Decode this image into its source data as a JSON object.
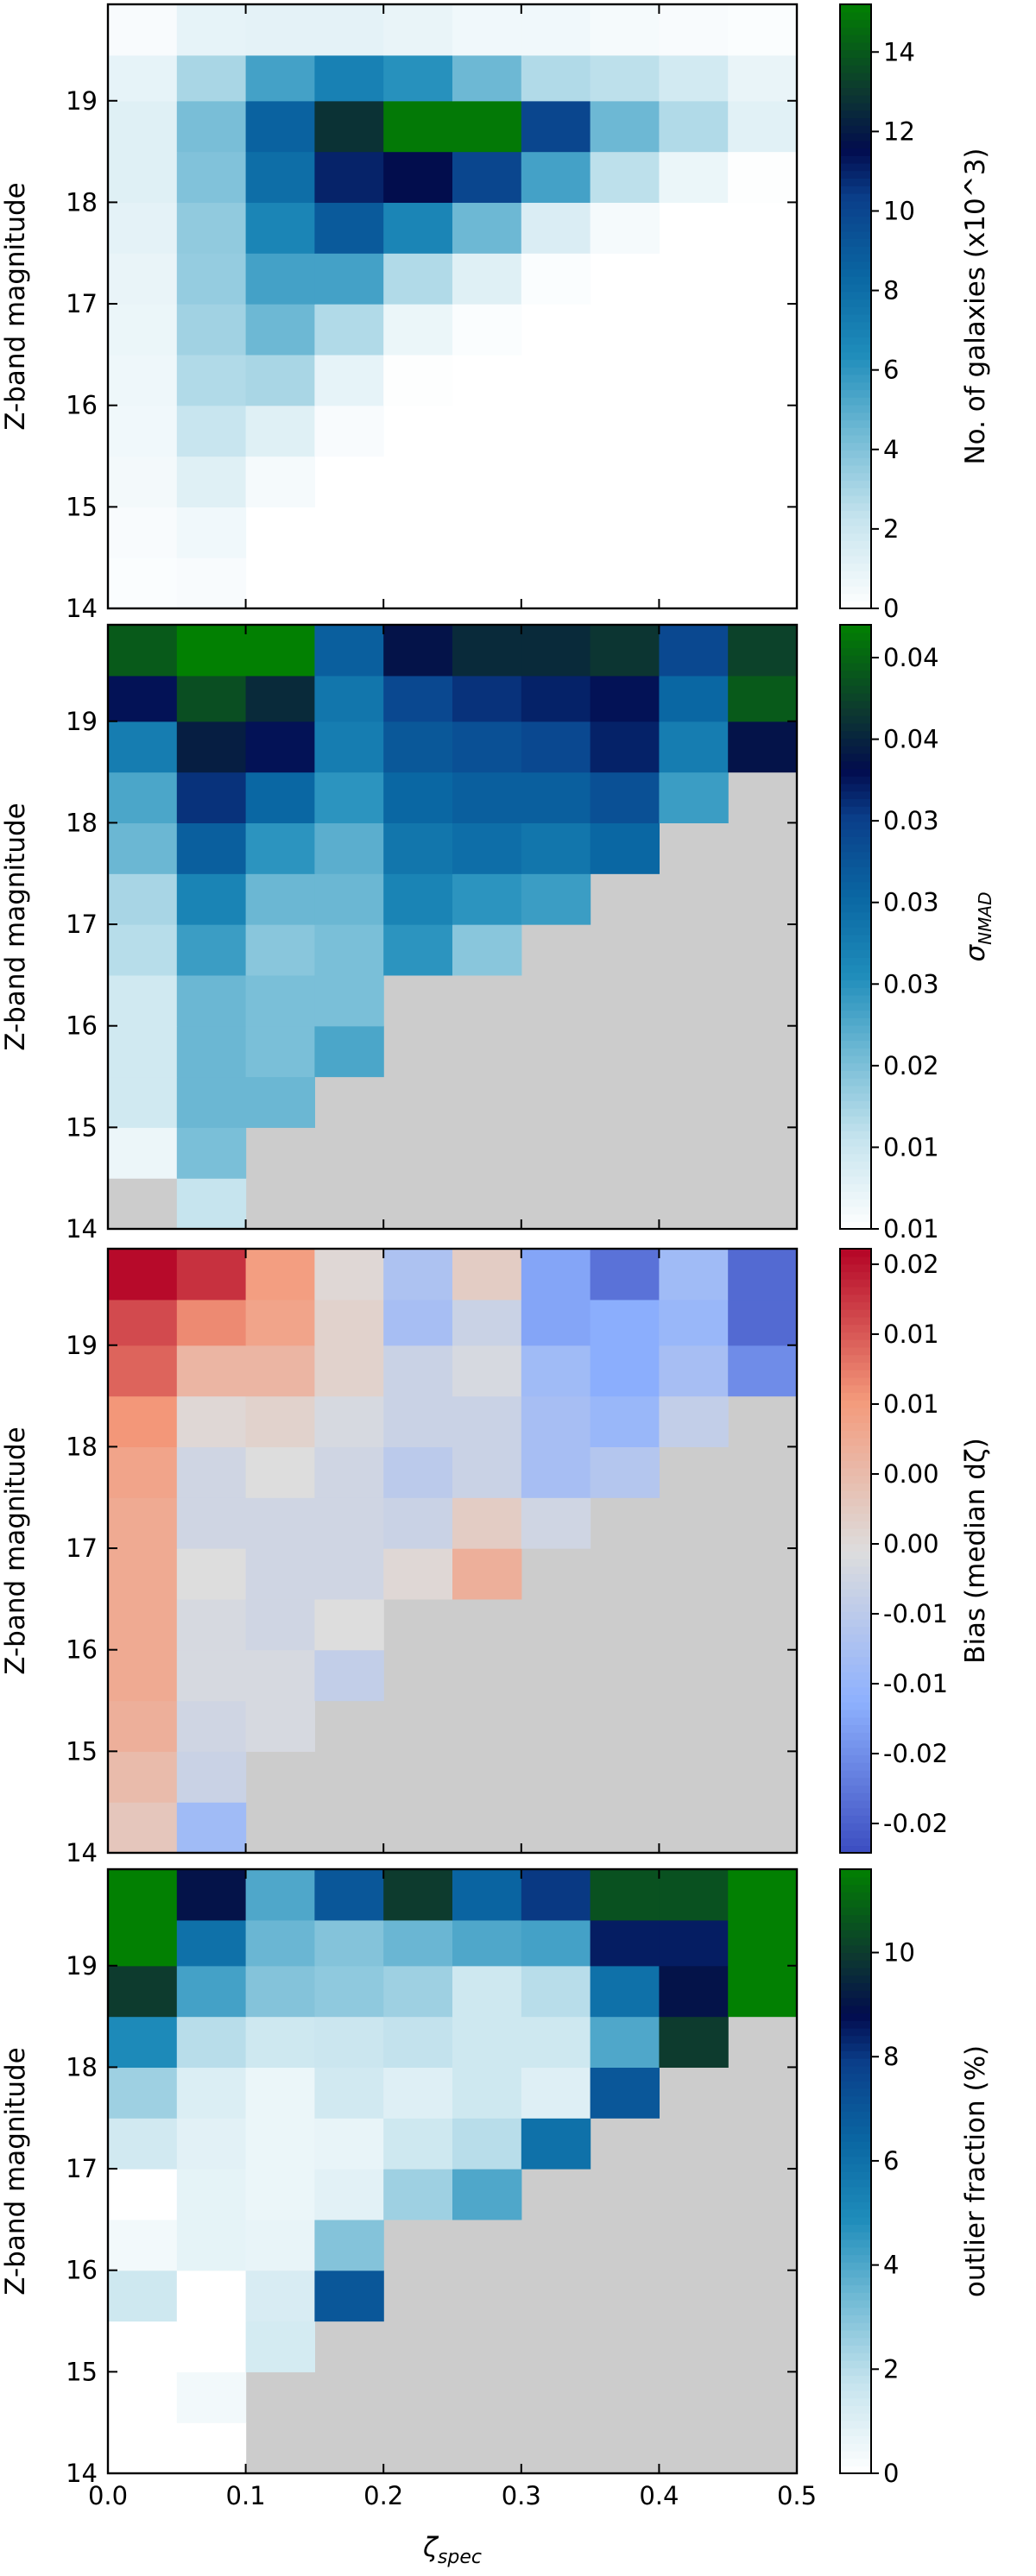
{
  "chart_data": [
    {
      "type": "heatmap",
      "panel": "galaxy-counts",
      "ylabel": "Z-band magnitude",
      "yticks": [
        "14",
        "15",
        "16",
        "17",
        "18",
        "19"
      ],
      "xticks": [],
      "xlabel": "",
      "xlim": [
        0.0,
        0.5
      ],
      "ylim": [
        14.0,
        19.95
      ],
      "x_bin_edges": [
        0.0,
        0.05,
        0.1,
        0.15,
        0.2,
        0.25,
        0.3,
        0.35,
        0.4,
        0.45,
        0.5
      ],
      "y_bin_edges": [
        14.0,
        14.5,
        15.0,
        15.5,
        16.0,
        16.5,
        17.0,
        17.5,
        18.0,
        18.5,
        19.0,
        19.45,
        19.95
      ],
      "values_bottom_to_top": [
        [
          0.2,
          0.3,
          null,
          null,
          null,
          null,
          null,
          null,
          null,
          null
        ],
        [
          0.3,
          0.6,
          null,
          null,
          null,
          null,
          null,
          null,
          null,
          null
        ],
        [
          0.5,
          1.3,
          0.4,
          null,
          null,
          null,
          null,
          null,
          null,
          null
        ],
        [
          0.6,
          2.2,
          1.3,
          0.3,
          null,
          null,
          null,
          null,
          null,
          null
        ],
        [
          0.7,
          2.8,
          3.0,
          1.0,
          0.1,
          null,
          null,
          null,
          null,
          null
        ],
        [
          0.8,
          3.2,
          4.5,
          2.8,
          0.8,
          0.2,
          null,
          null,
          null,
          null
        ],
        [
          0.9,
          3.5,
          5.5,
          5.5,
          2.8,
          1.3,
          0.2,
          null,
          null,
          null
        ],
        [
          1.1,
          3.6,
          6.8,
          9.0,
          6.8,
          4.5,
          1.5,
          0.4,
          null,
          null
        ],
        [
          1.3,
          4.0,
          8.0,
          11.0,
          11.6,
          10.0,
          5.5,
          2.5,
          0.8,
          0.1
        ],
        [
          1.3,
          4.2,
          8.6,
          12.8,
          15.0,
          15.0,
          10.0,
          4.5,
          2.8,
          1.2
        ],
        [
          1.0,
          3.0,
          5.5,
          7.0,
          6.2,
          4.5,
          2.8,
          2.5,
          1.8,
          0.9
        ],
        [
          0.3,
          1.0,
          1.1,
          1.1,
          0.9,
          0.6,
          0.6,
          0.4,
          0.3,
          0.2
        ]
      ],
      "colorbar": {
        "label": "No. of galaxies (x10^3)",
        "ticks": [
          "0",
          "2",
          "4",
          "6",
          "8",
          "10",
          "12",
          "14"
        ],
        "range": [
          0,
          15.2
        ]
      },
      "colormap": "white-teal-blue-navy-green",
      "missing_color": "#ffffff"
    },
    {
      "type": "heatmap",
      "panel": "sigma-nmad",
      "ylabel": "Z-band magnitude",
      "yticks": [
        "14",
        "15",
        "16",
        "17",
        "18",
        "19"
      ],
      "xticks": [],
      "xlabel": "",
      "xlim": [
        0.0,
        0.5
      ],
      "ylim": [
        14.0,
        19.95
      ],
      "x_bin_edges": [
        0.0,
        0.05,
        0.1,
        0.15,
        0.2,
        0.25,
        0.3,
        0.35,
        0.4,
        0.45,
        0.5
      ],
      "y_bin_edges": [
        14.0,
        14.5,
        15.0,
        15.5,
        16.0,
        16.5,
        17.0,
        17.5,
        18.0,
        18.5,
        19.0,
        19.45,
        19.95
      ],
      "values_bottom_to_top": [
        [
          null,
          0.012,
          null,
          null,
          null,
          null,
          null,
          null,
          null,
          null
        ],
        [
          0.008,
          0.017,
          null,
          null,
          null,
          null,
          null,
          null,
          null,
          null
        ],
        [
          0.011,
          0.018,
          0.018,
          null,
          null,
          null,
          null,
          null,
          null,
          null
        ],
        [
          0.011,
          0.018,
          0.017,
          0.02,
          null,
          null,
          null,
          null,
          null,
          null
        ],
        [
          0.011,
          0.018,
          0.017,
          0.017,
          null,
          null,
          null,
          null,
          null,
          null
        ],
        [
          0.013,
          0.021,
          0.016,
          0.017,
          0.022,
          0.016,
          null,
          null,
          null,
          null
        ],
        [
          0.014,
          0.024,
          0.018,
          0.018,
          0.024,
          0.022,
          0.021,
          null,
          null,
          null
        ],
        [
          0.018,
          0.029,
          0.022,
          0.019,
          0.026,
          0.027,
          0.026,
          0.028,
          null,
          null
        ],
        [
          0.02,
          0.034,
          0.028,
          0.022,
          0.028,
          0.029,
          0.029,
          0.031,
          0.021,
          null
        ],
        [
          0.025,
          0.038,
          0.036,
          0.025,
          0.03,
          0.031,
          0.032,
          0.035,
          0.025,
          0.037
        ],
        [
          0.036,
          0.042,
          0.039,
          0.026,
          0.032,
          0.034,
          0.035,
          0.036,
          0.028,
          0.043
        ],
        [
          0.043,
          0.046,
          0.046,
          0.029,
          0.037,
          0.039,
          0.039,
          0.04,
          0.032,
          0.041
        ]
      ],
      "colorbar": {
        "label": "σNMAD",
        "label_main": "σ",
        "label_sub": "NMAD",
        "ticks": [
          "0.01",
          "0.01",
          "0.02",
          "0.03",
          "0.03",
          "0.03",
          "0.04",
          "0.04"
        ],
        "range": [
          0.006,
          0.046
        ]
      },
      "colormap": "white-teal-blue-navy-green",
      "missing_color": "#cccccc"
    },
    {
      "type": "heatmap",
      "panel": "bias",
      "ylabel": "Z-band magnitude",
      "yticks": [
        "14",
        "15",
        "16",
        "17",
        "18",
        "19"
      ],
      "xticks": [],
      "xlabel": "",
      "xlim": [
        0.0,
        0.5
      ],
      "ylim": [
        14.0,
        19.95
      ],
      "x_bin_edges": [
        0.0,
        0.05,
        0.1,
        0.15,
        0.2,
        0.25,
        0.3,
        0.35,
        0.4,
        0.45,
        0.5
      ],
      "y_bin_edges": [
        14.0,
        14.5,
        15.0,
        15.5,
        16.0,
        16.5,
        17.0,
        17.5,
        18.0,
        18.5,
        19.0,
        19.45,
        19.95
      ],
      "values_bottom_to_top": [
        [
          0.004,
          -0.009,
          null,
          null,
          null,
          null,
          null,
          null,
          null,
          null
        ],
        [
          0.006,
          -0.003,
          null,
          null,
          null,
          null,
          null,
          null,
          null,
          null
        ],
        [
          0.008,
          -0.002,
          -0.001,
          null,
          null,
          null,
          null,
          null,
          null,
          null
        ],
        [
          0.009,
          -0.001,
          -0.001,
          -0.004,
          null,
          null,
          null,
          null,
          null,
          null
        ],
        [
          0.009,
          -0.001,
          -0.002,
          0.0,
          null,
          null,
          null,
          null,
          null,
          null
        ],
        [
          0.009,
          0.0,
          -0.002,
          -0.002,
          0.001,
          0.008,
          null,
          null,
          null,
          null
        ],
        [
          0.009,
          -0.002,
          -0.002,
          -0.002,
          -0.003,
          0.003,
          -0.002,
          null,
          null,
          null
        ],
        [
          0.01,
          -0.002,
          0.0,
          -0.002,
          -0.005,
          -0.003,
          -0.008,
          -0.006,
          null,
          null
        ],
        [
          0.012,
          0.001,
          0.002,
          -0.001,
          -0.003,
          -0.003,
          -0.008,
          -0.01,
          -0.004,
          null
        ],
        [
          0.016,
          0.007,
          0.007,
          0.002,
          -0.003,
          -0.001,
          -0.009,
          -0.012,
          -0.008,
          -0.016
        ],
        [
          0.018,
          0.013,
          0.01,
          0.002,
          -0.008,
          -0.003,
          -0.013,
          -0.012,
          -0.01,
          -0.02
        ],
        [
          0.023,
          0.02,
          0.011,
          0.001,
          -0.007,
          0.003,
          -0.013,
          -0.019,
          -0.009,
          -0.02
        ]
      ],
      "colorbar": {
        "label": "Bias (median dζ)",
        "ticks": [
          "-0.02",
          "-0.02",
          "-0.01",
          "-0.01",
          "0.00",
          "0.00",
          "0.01",
          "0.01",
          "0.02"
        ],
        "range": [
          -0.0235,
          0.0235
        ]
      },
      "colormap": "coolwarm",
      "missing_color": "#cccccc"
    },
    {
      "type": "heatmap",
      "panel": "outlier-fraction",
      "ylabel": "Z-band magnitude",
      "yticks": [
        "14",
        "15",
        "16",
        "17",
        "18",
        "19"
      ],
      "xticks": [
        "0.0",
        "0.1",
        "0.2",
        "0.3",
        "0.4",
        "0.5"
      ],
      "xlabel": "ζspec",
      "xlabel_main": "ζ",
      "xlabel_sub": "spec",
      "xlim": [
        0.0,
        0.5
      ],
      "ylim": [
        14.0,
        19.95
      ],
      "x_bin_edges": [
        0.0,
        0.05,
        0.1,
        0.15,
        0.2,
        0.25,
        0.3,
        0.35,
        0.4,
        0.45,
        0.5
      ],
      "y_bin_edges": [
        14.0,
        14.5,
        15.0,
        15.5,
        16.0,
        16.5,
        17.0,
        17.5,
        18.0,
        18.5,
        19.0,
        19.45,
        19.95
      ],
      "values_bottom_to_top": [
        [
          0.0,
          0.0,
          null,
          null,
          null,
          null,
          null,
          null,
          null,
          null
        ],
        [
          0.0,
          0.4,
          null,
          null,
          null,
          null,
          null,
          null,
          null,
          null
        ],
        [
          0.0,
          0.0,
          1.3,
          null,
          null,
          null,
          null,
          null,
          null,
          null
        ],
        [
          1.5,
          0.0,
          1.2,
          7.0,
          null,
          null,
          null,
          null,
          null,
          null
        ],
        [
          0.4,
          0.8,
          0.7,
          3.0,
          null,
          null,
          null,
          null,
          null,
          null
        ],
        [
          0.0,
          0.8,
          0.6,
          0.9,
          2.5,
          4.0,
          null,
          null,
          null,
          null
        ],
        [
          1.4,
          0.9,
          0.6,
          0.7,
          1.5,
          2.0,
          6.0,
          null,
          null,
          null
        ],
        [
          2.5,
          1.1,
          0.6,
          1.4,
          1.0,
          1.5,
          1.0,
          7.0,
          null,
          null
        ],
        [
          5.0,
          2.0,
          1.5,
          1.6,
          1.8,
          1.5,
          1.5,
          4.0,
          10.0,
          null
        ],
        [
          10.0,
          4.2,
          3.0,
          2.8,
          2.5,
          1.5,
          2.0,
          6.0,
          9.0,
          12.0
        ],
        [
          12.0,
          6.0,
          3.5,
          3.0,
          3.5,
          4.0,
          4.2,
          8.5,
          8.5,
          12.0
        ],
        [
          12.0,
          9.0,
          4.0,
          7.0,
          10.0,
          6.5,
          8.0,
          10.5,
          10.5,
          12.0
        ]
      ],
      "colorbar": {
        "label": "outlier fraction (%)",
        "ticks": [
          "0",
          "2",
          "4",
          "6",
          "8",
          "10"
        ],
        "range": [
          0,
          11.6
        ]
      },
      "colormap": "white-teal-blue-navy-green",
      "missing_color": "#cccccc"
    }
  ]
}
